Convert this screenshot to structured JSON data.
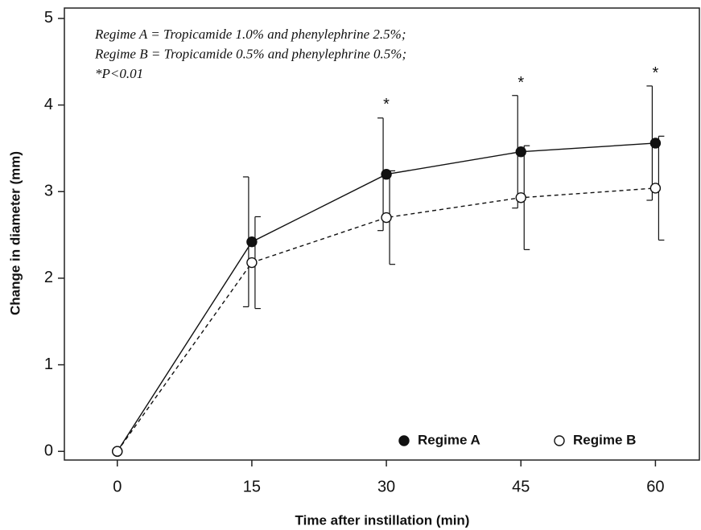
{
  "chart_data": {
    "type": "line",
    "notes": [
      "Regime A = Tropicamide 1.0% and phenylephrine 2.5%;",
      "Regime B = Tropicamide 0.5% and phenylephrine 0.5%;",
      "*P<0.01"
    ],
    "x_label": "Time after instillation (min)",
    "y_label": "Change in diameter (mm)",
    "x": [
      0,
      15,
      30,
      45,
      60
    ],
    "series": [
      {
        "name": "Regime A",
        "color": "#111111",
        "line_style": "solid",
        "marker": "filled",
        "values": [
          0,
          2.42,
          3.2,
          3.46,
          3.56
        ],
        "errors": [
          0,
          0.75,
          0.65,
          0.65,
          0.66
        ]
      },
      {
        "name": "Regime B",
        "color": "#111111",
        "line_style": "dashed",
        "marker": "open",
        "values": [
          0,
          2.18,
          2.7,
          2.93,
          3.04
        ],
        "errors": [
          0,
          0.53,
          0.54,
          0.6,
          0.6
        ]
      }
    ],
    "annotations": [
      {
        "x": 30,
        "y": 4.0,
        "text": "*"
      },
      {
        "x": 45,
        "y": 4.25,
        "text": "*"
      },
      {
        "x": 60,
        "y": 4.36,
        "text": "*"
      }
    ],
    "xlim": [
      -5.9,
      64.9
    ],
    "ylim": [
      -0.1,
      5.12
    ],
    "xticks": [
      0,
      15,
      30,
      45,
      60
    ],
    "yticks": [
      0,
      1,
      2,
      3,
      4,
      5
    ],
    "legend": "lower right"
  }
}
